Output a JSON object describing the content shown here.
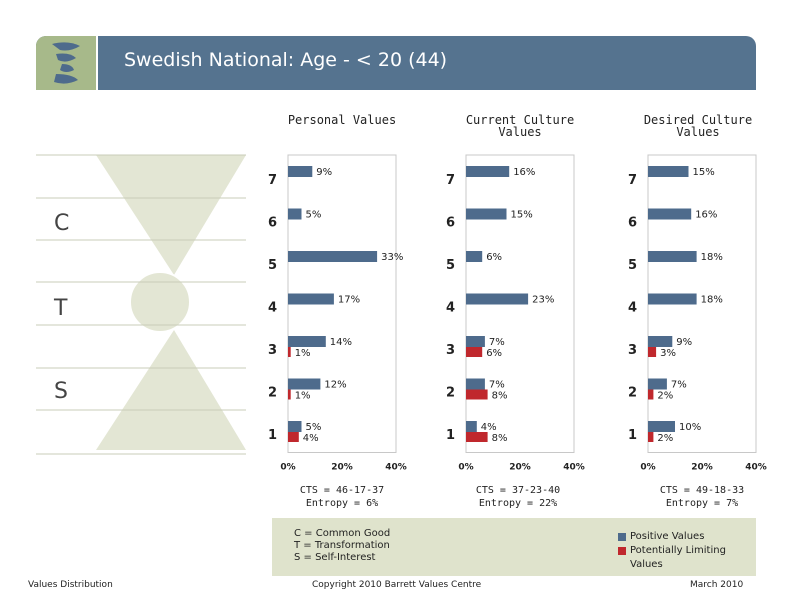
{
  "header": {
    "title": "Swedish National: Age - < 20 (44)"
  },
  "colors": {
    "header_bg": "#55738f",
    "logo_bg": "#a7b98a",
    "positive": "#4e6b8c",
    "limiting": "#c0282d",
    "funnel": "#e3e6d4",
    "legend_bg": "#dfe3cc"
  },
  "left_diagram": {
    "labels": [
      "C",
      "T",
      "S"
    ]
  },
  "chart_data": [
    {
      "type": "bar",
      "title": "Personal Values",
      "categories": [
        "7",
        "6",
        "5",
        "4",
        "3",
        "2",
        "1"
      ],
      "series": [
        {
          "name": "Positive Values",
          "values": [
            9,
            5,
            33,
            17,
            14,
            12,
            5
          ]
        },
        {
          "name": "Potentially Limiting Values",
          "values": [
            null,
            null,
            null,
            null,
            1,
            1,
            4
          ]
        }
      ],
      "xlim": [
        0,
        40
      ],
      "xticks": [
        "0%",
        "20%",
        "40%"
      ],
      "footer": [
        "CTS = 46-17-37",
        "Entropy = 6%"
      ]
    },
    {
      "type": "bar",
      "title": "Current Culture Values",
      "categories": [
        "7",
        "6",
        "5",
        "4",
        "3",
        "2",
        "1"
      ],
      "series": [
        {
          "name": "Positive Values",
          "values": [
            16,
            15,
            6,
            23,
            7,
            7,
            4
          ]
        },
        {
          "name": "Potentially Limiting Values",
          "values": [
            null,
            null,
            null,
            null,
            6,
            8,
            8
          ]
        }
      ],
      "xlim": [
        0,
        40
      ],
      "xticks": [
        "0%",
        "20%",
        "40%"
      ],
      "footer": [
        "CTS = 37-23-40",
        "Entropy = 22%"
      ]
    },
    {
      "type": "bar",
      "title": "Desired Culture Values",
      "categories": [
        "7",
        "6",
        "5",
        "4",
        "3",
        "2",
        "1"
      ],
      "series": [
        {
          "name": "Positive Values",
          "values": [
            15,
            16,
            18,
            18,
            9,
            7,
            10
          ]
        },
        {
          "name": "Potentially Limiting Values",
          "values": [
            null,
            null,
            null,
            null,
            3,
            2,
            2
          ]
        }
      ],
      "xlim": [
        0,
        40
      ],
      "xticks": [
        "0%",
        "20%",
        "40%"
      ],
      "footer": [
        "CTS = 49-18-33",
        "Entropy = 7%"
      ]
    }
  ],
  "legend": {
    "definitions": [
      "C = Common Good",
      "T = Transformation",
      "S = Self-Interest"
    ],
    "positive_label": "Positive Values",
    "limiting_label_1": "Potentially Limiting",
    "limiting_label_2": "Values"
  },
  "footer": {
    "left": "Values Distribution",
    "center": "Copyright 2010 Barrett Values Centre",
    "right": "March 2010"
  }
}
